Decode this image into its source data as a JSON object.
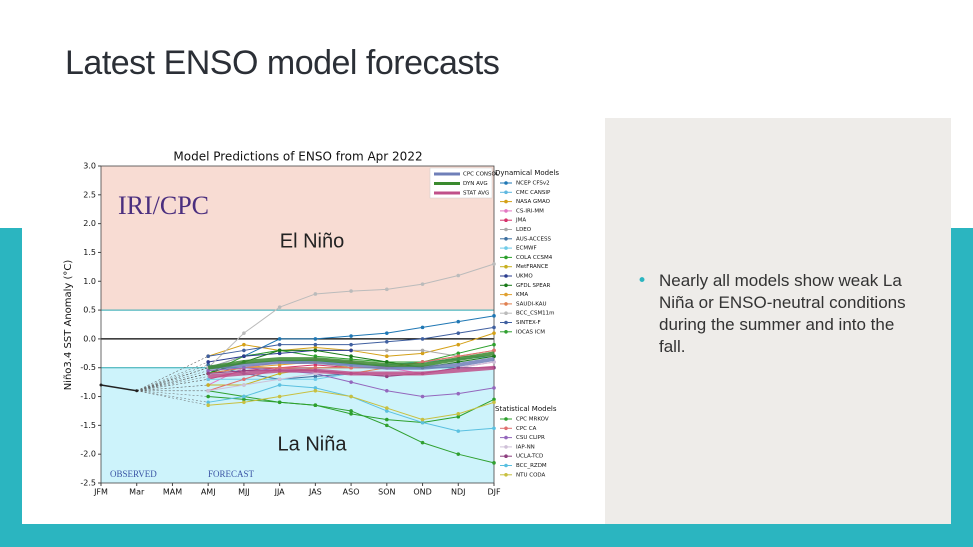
{
  "slide": {
    "title": "Latest ENSO model forecasts",
    "bullet": "Nearly all models show weak La Niña or ENSO-neutral conditions during the summer and into the fall."
  },
  "chart_data": {
    "type": "line",
    "title": "Model Predictions of ENSO from Apr 2022",
    "y_label": "Niño3.4 SST Anomaly (°C)",
    "annotations": {
      "logo": "IRI/CPC",
      "el_nino": "El Niño",
      "la_nina": "La Niña",
      "observed": "OBSERVED",
      "forecast": "FORECAST"
    },
    "categories": [
      "JFM",
      "Mar",
      "MAM",
      "AMJ",
      "MJJ",
      "JJA",
      "JAS",
      "ASO",
      "SON",
      "OND",
      "NDJ",
      "DJF"
    ],
    "ylim": [
      -2.5,
      3
    ],
    "yticks": [
      {
        "value": 3,
        "label": "3.0"
      },
      2.5,
      {
        "value": 2,
        "label": "2.0"
      },
      1.5,
      {
        "value": 1,
        "label": "1.0"
      },
      0.5,
      {
        "value": 0,
        "label": "0.0"
      },
      -0.5,
      {
        "value": -1,
        "label": "-1.0"
      },
      -1.5,
      {
        "value": -2,
        "label": "-2.0"
      },
      -2.5
    ],
    "el_nino_threshold": 0.5,
    "la_nina_threshold": -0.5,
    "observed": {
      "color": "#222222",
      "values": [
        -0.8,
        -0.9,
        null,
        null,
        null,
        null,
        null,
        null,
        null,
        null,
        null,
        null
      ]
    },
    "averages": [
      {
        "name": "CPC CONSOL",
        "color": "#6f7fb8",
        "values": [
          null,
          null,
          null,
          -0.5,
          -0.45,
          -0.4,
          -0.4,
          -0.45,
          -0.5,
          -0.5,
          -0.45,
          -0.35
        ]
      },
      {
        "name": "DYN AVG",
        "color": "#3a8a2f",
        "values": [
          null,
          null,
          null,
          -0.5,
          -0.4,
          -0.35,
          -0.35,
          -0.4,
          -0.45,
          -0.45,
          -0.35,
          -0.25
        ]
      },
      {
        "name": "STAT AVG",
        "color": "#c0508a",
        "values": [
          null,
          null,
          null,
          -0.65,
          -0.6,
          -0.55,
          -0.55,
          -0.6,
          -0.6,
          -0.6,
          -0.55,
          -0.5
        ]
      }
    ],
    "dynamical_models": {
      "title": "Dynamical Models",
      "series": [
        {
          "name": "NCEP CFSv2",
          "color": "#1f77b4",
          "values": [
            null,
            null,
            null,
            -0.5,
            -0.3,
            0.0,
            0.0,
            0.05,
            0.1,
            0.2,
            0.3,
            0.4
          ]
        },
        {
          "name": "CMC CANSIP",
          "color": "#5fb8e0",
          "values": [
            null,
            null,
            null,
            -0.6,
            -0.5,
            -0.4,
            -0.4,
            -0.45,
            -0.45,
            -0.4,
            -0.35,
            -0.3
          ]
        },
        {
          "name": "NASA GMAO",
          "color": "#d4a017",
          "values": [
            null,
            null,
            null,
            -0.3,
            -0.1,
            -0.2,
            -0.15,
            -0.2,
            -0.3,
            -0.25,
            -0.1,
            0.1
          ]
        },
        {
          "name": "CS-IRI-MM",
          "color": "#e377c2",
          "values": [
            null,
            null,
            null,
            -0.8,
            -0.5,
            -0.4,
            -0.35,
            -0.4,
            -0.5,
            -0.6,
            -0.5,
            -0.4
          ]
        },
        {
          "name": "JMA",
          "color": "#d6336c",
          "values": [
            null,
            null,
            null,
            -0.7,
            -0.55,
            -0.5,
            -0.45,
            -0.5,
            null,
            null,
            null,
            null
          ]
        },
        {
          "name": "LDEO",
          "color": "#aaaaaa",
          "values": [
            null,
            null,
            null,
            -0.5,
            -0.3,
            -0.2,
            -0.2,
            -0.2,
            -0.2,
            -0.2,
            -0.3,
            -0.3
          ]
        },
        {
          "name": "AUS-ACCESS",
          "color": "#3c6fa0",
          "values": [
            null,
            null,
            null,
            -0.45,
            -0.6,
            -0.7,
            -0.65,
            -0.6,
            null,
            null,
            null,
            null
          ]
        },
        {
          "name": "ECMWF",
          "color": "#6ecbe8",
          "values": [
            null,
            null,
            null,
            -0.7,
            -0.7,
            -0.7,
            -0.7,
            -0.6,
            null,
            null,
            null,
            null
          ]
        },
        {
          "name": "COLA CCSM4",
          "color": "#2ca02c",
          "values": [
            null,
            null,
            null,
            -0.6,
            -0.3,
            -0.2,
            -0.3,
            -0.35,
            -0.4,
            -0.4,
            -0.25,
            -0.1
          ]
        },
        {
          "name": "MetFRANCE",
          "color": "#c8b020",
          "values": [
            null,
            null,
            null,
            -0.8,
            -0.8,
            -0.6,
            -0.5,
            -0.5,
            null,
            null,
            null,
            null
          ]
        },
        {
          "name": "UKMO",
          "color": "#2b3d8f",
          "values": [
            null,
            null,
            null,
            -0.4,
            -0.3,
            -0.25,
            -0.2,
            -0.2,
            null,
            null,
            null,
            null
          ]
        },
        {
          "name": "GFDL SPEAR",
          "color": "#1a7a1a",
          "values": [
            null,
            null,
            null,
            -0.6,
            -0.4,
            -0.2,
            -0.2,
            -0.3,
            -0.4,
            -0.5,
            -0.4,
            -0.3
          ]
        },
        {
          "name": "KMA",
          "color": "#e0a030",
          "values": [
            null,
            null,
            null,
            -0.6,
            -0.5,
            -0.45,
            -0.4,
            -0.5,
            null,
            null,
            null,
            null
          ]
        },
        {
          "name": "SAUDI-KAU",
          "color": "#e08050",
          "values": [
            null,
            null,
            null,
            -0.6,
            -0.5,
            -0.5,
            -0.55,
            -0.6,
            -0.5,
            -0.4,
            -0.3,
            -0.2
          ]
        },
        {
          "name": "BCC_CSM11m",
          "color": "#bbbbbb",
          "values": [
            null,
            null,
            null,
            -0.5,
            0.1,
            0.55,
            0.78,
            0.83,
            0.86,
            0.95,
            1.1,
            1.3
          ]
        },
        {
          "name": "SINTEX-F",
          "color": "#4060a0",
          "values": [
            null,
            null,
            null,
            -0.3,
            -0.2,
            -0.1,
            -0.1,
            -0.1,
            -0.05,
            0.0,
            0.1,
            0.2
          ]
        },
        {
          "name": "IOCAS ICM",
          "color": "#30a030",
          "values": [
            null,
            null,
            null,
            -0.9,
            -1.0,
            -1.1,
            -1.15,
            -1.25,
            -1.5,
            -1.8,
            -2.0,
            -2.15
          ]
        }
      ]
    },
    "statistical_models": {
      "title": "Statistical Models",
      "series": [
        {
          "name": "CPC MRKOV",
          "color": "#2ca02c",
          "values": [
            null,
            null,
            null,
            -1.0,
            -1.05,
            -1.1,
            -1.15,
            -1.3,
            -1.4,
            -1.45,
            -1.35,
            -1.05
          ]
        },
        {
          "name": "CPC CA",
          "color": "#e07070",
          "values": [
            null,
            null,
            null,
            -0.9,
            -0.7,
            -0.5,
            -0.5,
            -0.5,
            -0.5,
            -0.4,
            -0.3,
            -0.2
          ]
        },
        {
          "name": "CSU CLIPR",
          "color": "#9467bd",
          "values": [
            null,
            null,
            null,
            -0.55,
            -0.5,
            -0.55,
            -0.6,
            -0.75,
            -0.9,
            -1.0,
            -0.95,
            -0.85
          ]
        },
        {
          "name": "IAP-NN",
          "color": "#cfc0d8",
          "values": [
            null,
            null,
            null,
            -0.9,
            -0.8,
            -0.7,
            -0.6,
            -0.6,
            -0.6,
            -0.6,
            -0.5,
            -0.4
          ]
        },
        {
          "name": "UCLA-TCD",
          "color": "#8e4080",
          "values": [
            null,
            null,
            null,
            -0.6,
            -0.55,
            -0.55,
            -0.55,
            -0.6,
            -0.65,
            -0.6,
            -0.5,
            -0.5
          ]
        },
        {
          "name": "BCC_RZDM",
          "color": "#5ac0e0",
          "values": [
            null,
            null,
            null,
            -1.1,
            -1.0,
            -0.8,
            -0.85,
            -1.0,
            -1.25,
            -1.45,
            -1.6,
            -1.55
          ]
        },
        {
          "name": "NTU CODA",
          "color": "#c8c040",
          "values": [
            null,
            null,
            null,
            -1.15,
            -1.1,
            -1.0,
            -0.9,
            -1.0,
            -1.2,
            -1.4,
            -1.3,
            -1.1
          ]
        }
      ]
    }
  }
}
